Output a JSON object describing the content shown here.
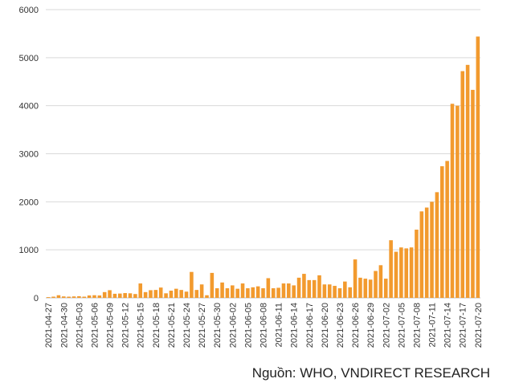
{
  "chart_data": {
    "type": "bar",
    "title": "",
    "xlabel": "",
    "ylabel": "",
    "ylim": [
      0,
      6000
    ],
    "yticks": [
      0,
      1000,
      2000,
      3000,
      4000,
      5000,
      6000
    ],
    "grid": true,
    "legend": "none",
    "bar_color": "#F29A2E",
    "categories": [
      "2021-04-27",
      "2021-04-28",
      "2021-04-29",
      "2021-04-30",
      "2021-05-01",
      "2021-05-02",
      "2021-05-03",
      "2021-05-04",
      "2021-05-05",
      "2021-05-06",
      "2021-05-07",
      "2021-05-08",
      "2021-05-09",
      "2021-05-10",
      "2021-05-11",
      "2021-05-12",
      "2021-05-13",
      "2021-05-14",
      "2021-05-15",
      "2021-05-16",
      "2021-05-17",
      "2021-05-18",
      "2021-05-19",
      "2021-05-20",
      "2021-05-21",
      "2021-05-22",
      "2021-05-23",
      "2021-05-24",
      "2021-05-25",
      "2021-05-26",
      "2021-05-27",
      "2021-05-28",
      "2021-05-29",
      "2021-05-30",
      "2021-05-31",
      "2021-06-01",
      "2021-06-02",
      "2021-06-03",
      "2021-06-04",
      "2021-06-05",
      "2021-06-06",
      "2021-06-07",
      "2021-06-08",
      "2021-06-09",
      "2021-06-10",
      "2021-06-11",
      "2021-06-12",
      "2021-06-13",
      "2021-06-14",
      "2021-06-15",
      "2021-06-16",
      "2021-06-17",
      "2021-06-18",
      "2021-06-19",
      "2021-06-20",
      "2021-06-21",
      "2021-06-22",
      "2021-06-23",
      "2021-06-24",
      "2021-06-25",
      "2021-06-26",
      "2021-06-27",
      "2021-06-28",
      "2021-06-29",
      "2021-06-30",
      "2021-07-01",
      "2021-07-02",
      "2021-07-03",
      "2021-07-04",
      "2021-07-05",
      "2021-07-06",
      "2021-07-07",
      "2021-07-08",
      "2021-07-09",
      "2021-07-10",
      "2021-07-11",
      "2021-07-12",
      "2021-07-13",
      "2021-07-14",
      "2021-07-15",
      "2021-07-16",
      "2021-07-17",
      "2021-07-18",
      "2021-07-19",
      "2021-07-20"
    ],
    "tick_labels": [
      "2021-04-27",
      "2021-04-30",
      "2021-05-03",
      "2021-05-06",
      "2021-05-09",
      "2021-05-12",
      "2021-05-15",
      "2021-05-18",
      "2021-05-21",
      "2021-05-24",
      "2021-05-27",
      "2021-05-30",
      "2021-06-02",
      "2021-06-05",
      "2021-06-08",
      "2021-06-11",
      "2021-06-14",
      "2021-06-17",
      "2021-06-20",
      "2021-06-23",
      "2021-06-26",
      "2021-06-29",
      "2021-07-02",
      "2021-07-05",
      "2021-07-08",
      "2021-07-11",
      "2021-07-14",
      "2021-07-17",
      "2021-07-20"
    ],
    "values": [
      15,
      25,
      55,
      30,
      25,
      30,
      35,
      25,
      50,
      55,
      50,
      120,
      160,
      85,
      90,
      100,
      95,
      80,
      300,
      120,
      160,
      165,
      215,
      95,
      150,
      190,
      165,
      130,
      540,
      165,
      280,
      55,
      520,
      200,
      320,
      200,
      260,
      190,
      300,
      200,
      220,
      240,
      200,
      410,
      200,
      210,
      300,
      300,
      260,
      420,
      500,
      370,
      370,
      470,
      280,
      280,
      250,
      200,
      340,
      220,
      800,
      420,
      400,
      380,
      560,
      680,
      400,
      1200,
      960,
      1050,
      1030,
      1050,
      1420,
      1800,
      1880,
      2000,
      2200,
      2740,
      2850,
      4040,
      4000,
      4720,
      4850,
      4330,
      5440
    ]
  },
  "source_note": "Nguồn: WHO, VNDIRECT RESEARCH"
}
